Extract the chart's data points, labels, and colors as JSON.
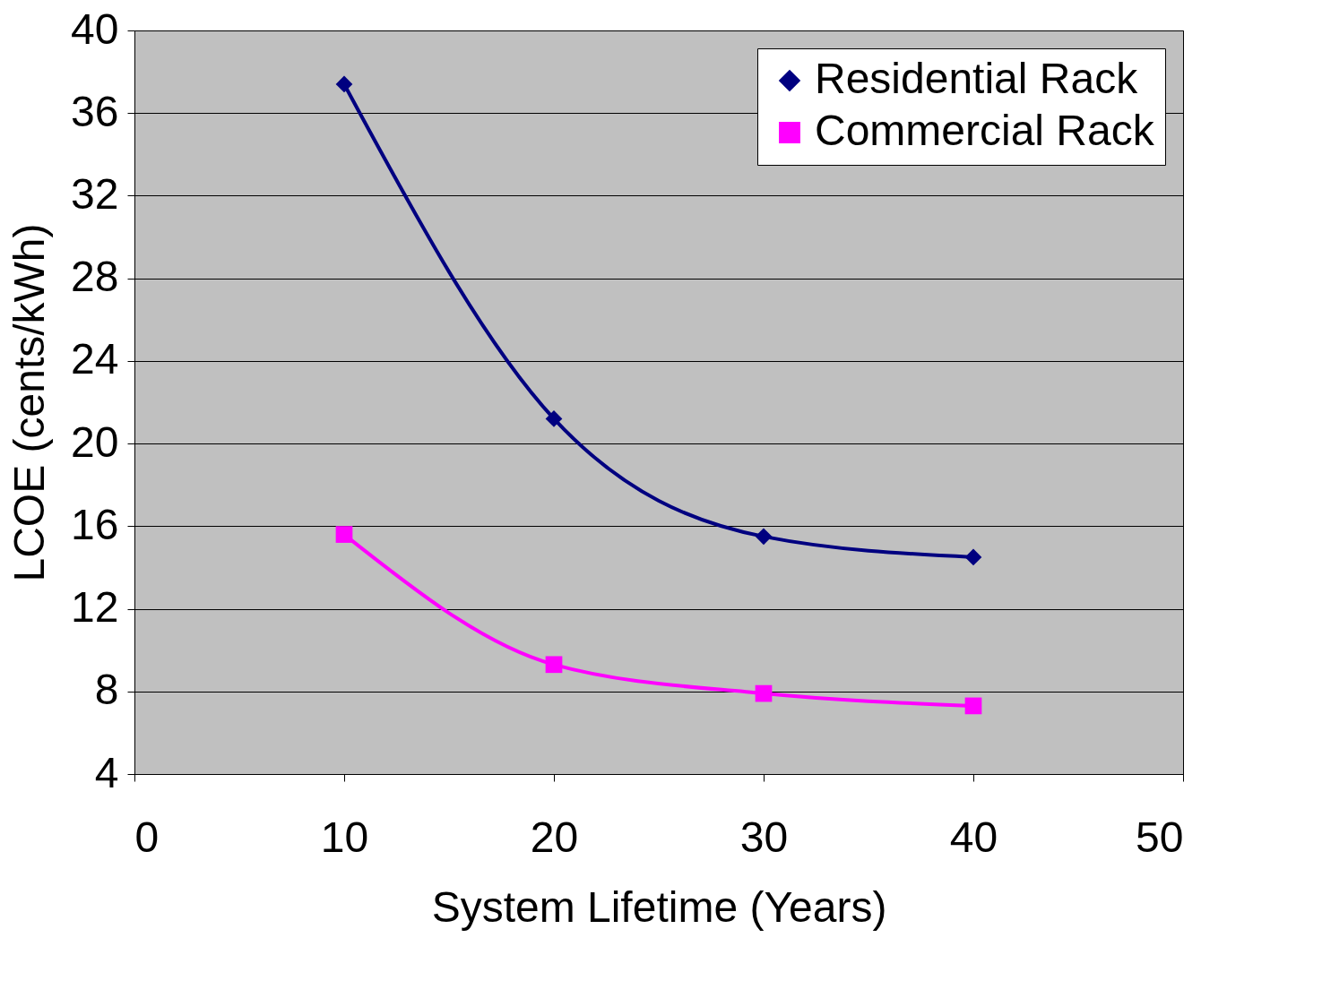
{
  "chart_data": {
    "type": "line",
    "xlabel": "System Lifetime (Years)",
    "ylabel": "LCOE (cents/kWh)",
    "x": [
      10,
      20,
      30,
      40
    ],
    "series": [
      {
        "name": "Residential Rack",
        "color": "#000080",
        "marker": "diamond",
        "values": [
          37.4,
          21.2,
          15.5,
          14.5
        ]
      },
      {
        "name": "Commercial Rack",
        "color": "#ff00ff",
        "marker": "square",
        "values": [
          15.6,
          9.3,
          7.9,
          7.3
        ]
      }
    ],
    "xlim": [
      0,
      50
    ],
    "xticks": [
      0,
      10,
      20,
      30,
      40,
      50
    ],
    "ylim": [
      4,
      40
    ],
    "yticks": [
      4,
      8,
      12,
      16,
      20,
      24,
      28,
      32,
      36,
      40
    ],
    "grid": "y",
    "legend": "top right",
    "line_style": "solid"
  }
}
